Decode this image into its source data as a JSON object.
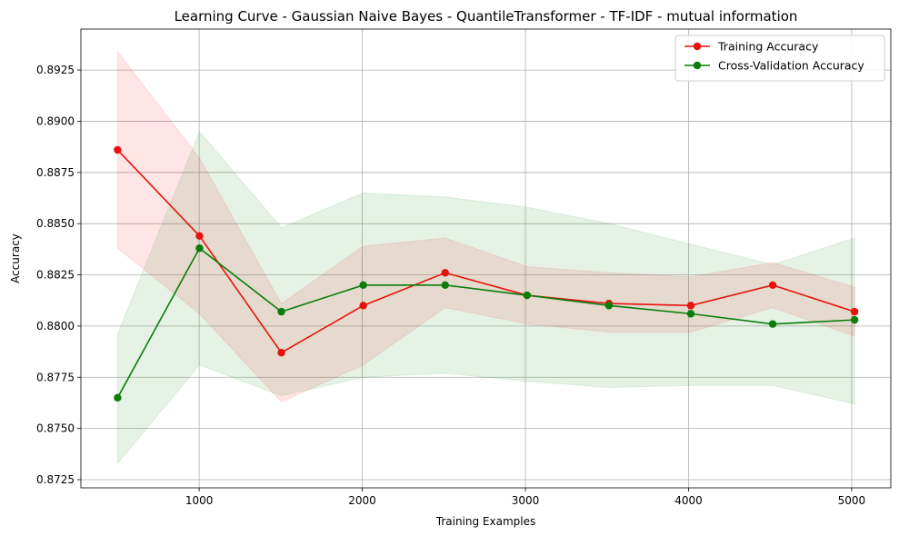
{
  "chart_data": {
    "type": "line",
    "title": "Learning Curve - Gaussian Naive Bayes - QuantileTransformer - TF-IDF - mutual information",
    "xlabel": "Training Examples",
    "ylabel": "Accuracy",
    "xlim": [
      275,
      5240
    ],
    "ylim": [
      0.8721,
      0.8945
    ],
    "xticks": [
      1000,
      2000,
      3000,
      4000,
      5000
    ],
    "yticks": [
      0.8725,
      0.875,
      0.8775,
      0.88,
      0.8825,
      0.885,
      0.8875,
      0.89,
      0.8925
    ],
    "ytick_labels": [
      "0.8725",
      "0.8750",
      "0.8775",
      "0.8800",
      "0.8825",
      "0.8850",
      "0.8875",
      "0.8900",
      "0.8925"
    ],
    "grid": true,
    "legend_position": "top-right",
    "x": [
      500,
      1002,
      1504,
      2006,
      2508,
      3010,
      3512,
      4014,
      4516,
      5018
    ],
    "series": [
      {
        "name": "Training Accuracy",
        "color": "#e8120d",
        "band_color": "#ff0000",
        "values": [
          0.8886,
          0.8844,
          0.8787,
          0.881,
          0.8826,
          0.8815,
          0.8811,
          0.881,
          0.882,
          0.8807
        ],
        "upper": [
          0.8934,
          0.8882,
          0.8811,
          0.8839,
          0.8843,
          0.8829,
          0.8826,
          0.8824,
          0.8831,
          0.8819
        ],
        "lower": [
          0.8838,
          0.8806,
          0.8763,
          0.8781,
          0.8809,
          0.8801,
          0.8797,
          0.8797,
          0.8809,
          0.8795
        ]
      },
      {
        "name": "Cross-Validation Accuracy",
        "color": "#0a7d0a",
        "band_color": "#008000",
        "values": [
          0.8765,
          0.8838,
          0.8807,
          0.882,
          0.882,
          0.8815,
          0.881,
          0.8806,
          0.8801,
          0.8803
        ],
        "upper": [
          0.8796,
          0.8895,
          0.8848,
          0.8865,
          0.8863,
          0.8858,
          0.885,
          0.884,
          0.883,
          0.8843
        ],
        "lower": [
          0.8733,
          0.8781,
          0.8766,
          0.8775,
          0.8777,
          0.8773,
          0.877,
          0.8771,
          0.8771,
          0.8762
        ]
      }
    ]
  }
}
